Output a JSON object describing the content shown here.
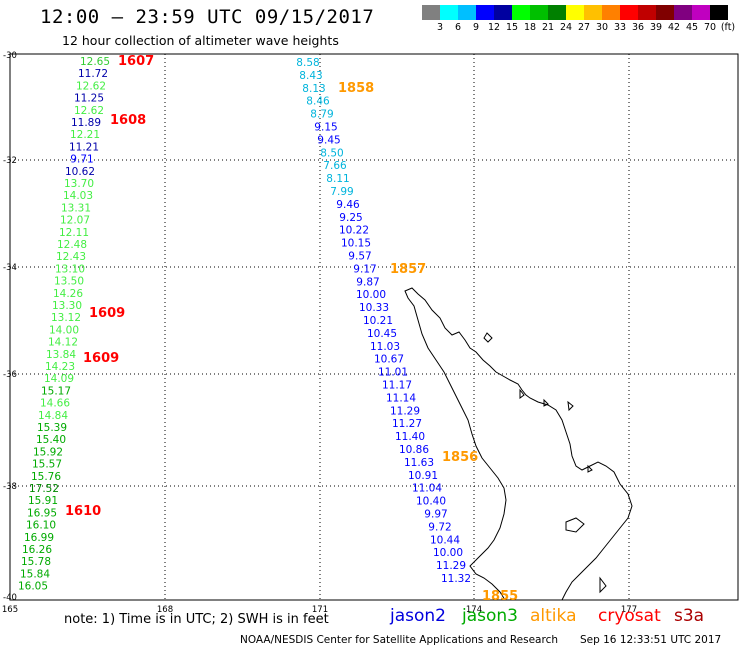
{
  "header": {
    "title": "12:00 – 23:59 UTC 09/15/2017",
    "subtitle": "12 hour collection of altimeter wave heights"
  },
  "colorbar": {
    "swatches": [
      "#808080",
      "#00ffff",
      "#00bfff",
      "#0000ff",
      "#0000a0",
      "#00ff00",
      "#00c000",
      "#008000",
      "#ffff00",
      "#ffc000",
      "#ff8000",
      "#ff0000",
      "#c00000",
      "#800000",
      "#800080",
      "#c000c0",
      "#000000"
    ],
    "labels": [
      "3",
      "6",
      "9",
      "12",
      "15",
      "18",
      "21",
      "24",
      "27",
      "30",
      "33",
      "36",
      "39",
      "42",
      "45",
      "70"
    ],
    "unit": "(ft)"
  },
  "axes": {
    "lat_labels": [
      "-30",
      "-32",
      "-34",
      "-36",
      "-38",
      "-40"
    ],
    "lon_labels": [
      "165",
      "168",
      "171",
      "174",
      "177"
    ]
  },
  "tracks": {
    "west": {
      "values": [
        {
          "v": "12.65",
          "c": "#33cc33"
        },
        {
          "v": "11.72",
          "c": "#0000aa"
        },
        {
          "v": "12.62",
          "c": "#44ee44"
        },
        {
          "v": "11.25",
          "c": "#0000aa"
        },
        {
          "v": "12.62",
          "c": "#44ee44"
        },
        {
          "v": "11.89",
          "c": "#0000aa"
        },
        {
          "v": "12.21",
          "c": "#44ee44"
        },
        {
          "v": "11.21",
          "c": "#0000aa"
        },
        {
          "v": "9.71",
          "c": "#0000ff"
        },
        {
          "v": "10.62",
          "c": "#0000aa"
        },
        {
          "v": "13.70",
          "c": "#44ee44"
        },
        {
          "v": "14.03",
          "c": "#44ee44"
        },
        {
          "v": "13.31",
          "c": "#44ee44"
        },
        {
          "v": "12.07",
          "c": "#44ee44"
        },
        {
          "v": "12.11",
          "c": "#44ee44"
        },
        {
          "v": "12.48",
          "c": "#44ee44"
        },
        {
          "v": "12.43",
          "c": "#44ee44"
        },
        {
          "v": "13.10",
          "c": "#44ee44"
        },
        {
          "v": "13.50",
          "c": "#44ee44"
        },
        {
          "v": "14.26",
          "c": "#44ee44"
        },
        {
          "v": "13.30",
          "c": "#44ee44"
        },
        {
          "v": "13.12",
          "c": "#44ee44"
        },
        {
          "v": "14.00",
          "c": "#44ee44"
        },
        {
          "v": "14.12",
          "c": "#44ee44"
        },
        {
          "v": "13.84",
          "c": "#44ee44"
        },
        {
          "v": "14.23",
          "c": "#44ee44"
        },
        {
          "v": "14.09",
          "c": "#44ee44"
        },
        {
          "v": "15.17",
          "c": "#00aa00"
        },
        {
          "v": "14.66",
          "c": "#44ee44"
        },
        {
          "v": "14.84",
          "c": "#44ee44"
        },
        {
          "v": "15.39",
          "c": "#00aa00"
        },
        {
          "v": "15.40",
          "c": "#00aa00"
        },
        {
          "v": "15.92",
          "c": "#00aa00"
        },
        {
          "v": "15.57",
          "c": "#00aa00"
        },
        {
          "v": "15.76",
          "c": "#00aa00"
        },
        {
          "v": "17.52",
          "c": "#008800"
        },
        {
          "v": "15.91",
          "c": "#00aa00"
        },
        {
          "v": "16.95",
          "c": "#00aa00"
        },
        {
          "v": "16.10",
          "c": "#00aa00"
        },
        {
          "v": "16.99",
          "c": "#00aa00"
        },
        {
          "v": "16.26",
          "c": "#00aa00"
        },
        {
          "v": "15.78",
          "c": "#00aa00"
        },
        {
          "v": "15.84",
          "c": "#00aa00"
        },
        {
          "v": "16.05",
          "c": "#00aa00"
        }
      ],
      "times": [
        "1607",
        "1608",
        "1609",
        "1609",
        "1610"
      ]
    },
    "east": {
      "values": [
        {
          "v": "8.58",
          "c": "#00b4dc"
        },
        {
          "v": "8.43",
          "c": "#00b4dc"
        },
        {
          "v": "8.13",
          "c": "#00b4dc"
        },
        {
          "v": "8.46",
          "c": "#00b4dc"
        },
        {
          "v": "8.79",
          "c": "#00b4dc"
        },
        {
          "v": "9.15",
          "c": "#0000ff"
        },
        {
          "v": "9.45",
          "c": "#0000ff"
        },
        {
          "v": "8.50",
          "c": "#00b4dc"
        },
        {
          "v": "7.66",
          "c": "#00b4dc"
        },
        {
          "v": "8.11",
          "c": "#00b4dc"
        },
        {
          "v": "7.99",
          "c": "#00b4dc"
        },
        {
          "v": "9.46",
          "c": "#0000ff"
        },
        {
          "v": "9.25",
          "c": "#0000ff"
        },
        {
          "v": "10.22",
          "c": "#0000ff"
        },
        {
          "v": "10.15",
          "c": "#0000ff"
        },
        {
          "v": "9.57",
          "c": "#0000ff"
        },
        {
          "v": "9.17",
          "c": "#0000ff"
        },
        {
          "v": "9.87",
          "c": "#0000ff"
        },
        {
          "v": "10.00",
          "c": "#0000ff"
        },
        {
          "v": "10.33",
          "c": "#0000ff"
        },
        {
          "v": "10.21",
          "c": "#0000ff"
        },
        {
          "v": "10.45",
          "c": "#0000ff"
        },
        {
          "v": "11.03",
          "c": "#0000ff"
        },
        {
          "v": "10.67",
          "c": "#0000ff"
        },
        {
          "v": "11.01",
          "c": "#0000ff"
        },
        {
          "v": "11.17",
          "c": "#0000ff"
        },
        {
          "v": "11.14",
          "c": "#0000ff"
        },
        {
          "v": "11.29",
          "c": "#0000ff"
        },
        {
          "v": "11.27",
          "c": "#0000ff"
        },
        {
          "v": "11.40",
          "c": "#0000ff"
        },
        {
          "v": "10.86",
          "c": "#0000ff"
        },
        {
          "v": "11.63",
          "c": "#0000ff"
        },
        {
          "v": "10.91",
          "c": "#0000ff"
        },
        {
          "v": "11.04",
          "c": "#0000ff"
        },
        {
          "v": "10.40",
          "c": "#0000ff"
        },
        {
          "v": "9.97",
          "c": "#0000ff"
        },
        {
          "v": "9.72",
          "c": "#0000ff"
        },
        {
          "v": "10.44",
          "c": "#0000ff"
        },
        {
          "v": "10.00",
          "c": "#0000ff"
        },
        {
          "v": "11.29",
          "c": "#0000ff"
        },
        {
          "v": "11.32",
          "c": "#0000ff"
        }
      ],
      "times": [
        "1858",
        "1857",
        "1856",
        "1855"
      ]
    }
  },
  "footer": {
    "note": "note:  1) Time is in UTC; 2) SWH is in feet",
    "missions": [
      {
        "name": "jason2",
        "color": "#0000dd"
      },
      {
        "name": "jason3",
        "color": "#00aa00"
      },
      {
        "name": "altika",
        "color": "#ff9900"
      },
      {
        "name": "cryosat",
        "color": "#ff0000"
      },
      {
        "name": "s3a",
        "color": "#aa0000"
      }
    ],
    "credit": "NOAA/NESDIS Center for Satellite Applications and Research",
    "timestamp": "Sep 16 12:33:51 UTC 2017"
  }
}
